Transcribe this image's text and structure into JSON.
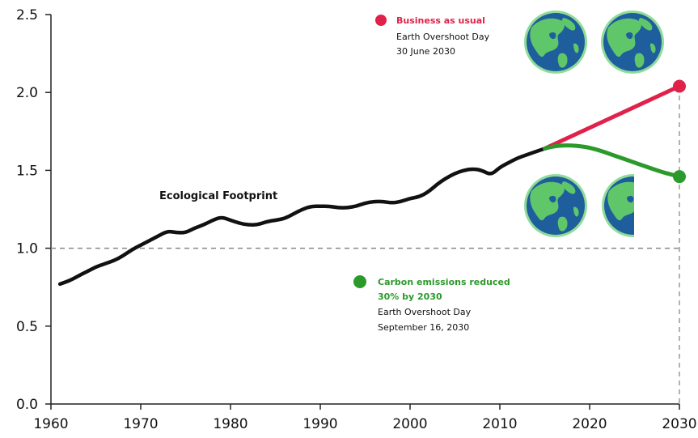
{
  "chart_data": {
    "type": "line",
    "x_ticks": [
      "1960",
      "1970",
      "1980",
      "1990",
      "2000",
      "2010",
      "2020",
      "2030"
    ],
    "y_ticks": [
      "0.0",
      "0.5",
      "1.0",
      "1.5",
      "2.0",
      "2.5"
    ],
    "xlim": [
      1960,
      2030
    ],
    "ylim": [
      0,
      2.5
    ],
    "reference_line": {
      "y": 1.0,
      "style": "dashed"
    },
    "grid": false,
    "series_label": "Ecological Footprint",
    "series": [
      {
        "color": "#111111",
        "x": [
          1961,
          1962,
          1963,
          1964,
          1965,
          1966,
          1967,
          1968,
          1969,
          1970,
          1971,
          1972,
          1973,
          1974,
          1975,
          1976,
          1977,
          1978,
          1979,
          1980,
          1981,
          1982,
          1983,
          1984,
          1985,
          1986,
          1987,
          1988,
          1989,
          1990,
          1991,
          1992,
          1993,
          1994,
          1995,
          1996,
          1997,
          1998,
          1999,
          2000,
          2001,
          2002,
          2003,
          2004,
          2005,
          2006,
          2007,
          2008,
          2009,
          2010,
          2011,
          2012,
          2013,
          2014,
          2015
        ],
        "y": [
          0.77,
          0.79,
          0.82,
          0.85,
          0.88,
          0.9,
          0.92,
          0.95,
          0.99,
          1.02,
          1.05,
          1.08,
          1.11,
          1.1,
          1.1,
          1.13,
          1.15,
          1.18,
          1.2,
          1.18,
          1.16,
          1.15,
          1.15,
          1.17,
          1.18,
          1.19,
          1.22,
          1.25,
          1.27,
          1.27,
          1.27,
          1.26,
          1.26,
          1.27,
          1.29,
          1.3,
          1.3,
          1.29,
          1.3,
          1.32,
          1.33,
          1.36,
          1.41,
          1.45,
          1.48,
          1.5,
          1.51,
          1.5,
          1.47,
          1.52,
          1.55,
          1.58,
          1.6,
          1.62,
          1.64
        ]
      },
      {
        "name": "Business as usual",
        "color": "#e0224a",
        "x": [
          2015,
          2030
        ],
        "y": [
          1.64,
          2.04
        ]
      },
      {
        "name": "Carbon emissions reduced 30% by 2030",
        "color": "#2a9a2a",
        "x": [
          2015,
          2016,
          2017,
          2018,
          2019,
          2020,
          2021,
          2022,
          2023,
          2024,
          2025,
          2026,
          2027,
          2028,
          2029,
          2030
        ],
        "y": [
          1.64,
          1.655,
          1.66,
          1.66,
          1.655,
          1.645,
          1.63,
          1.61,
          1.59,
          1.57,
          1.55,
          1.53,
          1.51,
          1.49,
          1.475,
          1.46
        ]
      }
    ],
    "annotations": {
      "bau_title": "Business as usual",
      "bau_line1": "Earth Overshoot Day",
      "bau_line2": "30 June 2030",
      "reduced_title1": "Carbon emissions reduced",
      "reduced_title2": "30% by 2030",
      "reduced_line1": "Earth Overshoot Day",
      "reduced_line2": "September 16, 2030"
    },
    "globes": {
      "business_as_usual_count": "2",
      "reduced_count": "1.5",
      "ocean_color": "#1f5e9c",
      "land_color": "#5fc76a"
    }
  }
}
